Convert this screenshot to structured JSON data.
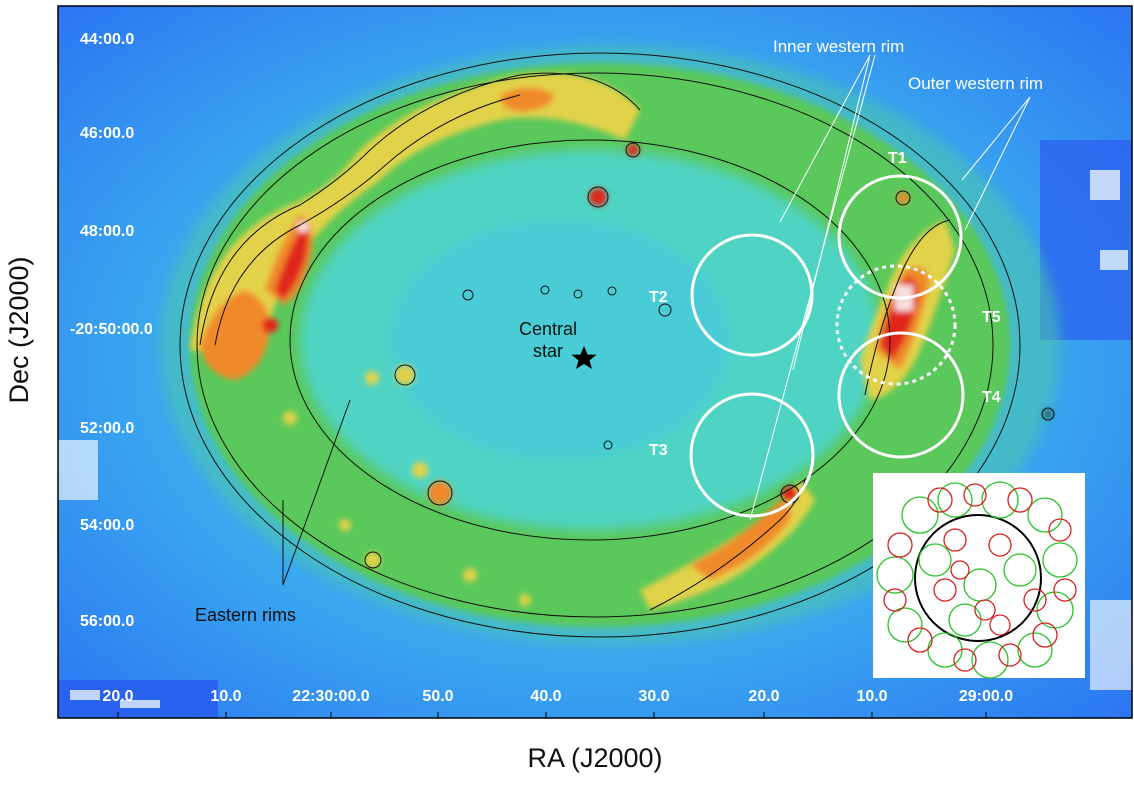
{
  "axes": {
    "x_title": "RA (J2000)",
    "y_title": "Dec (J2000)",
    "x_ticks": [
      "20.0",
      "10.0",
      "22:30:00.0",
      "50.0",
      "40.0",
      "30.0",
      "20.0",
      "10.0",
      "29:00.0"
    ],
    "y_ticks": [
      "44:00.0",
      "46:00.0",
      "48:00.0",
      "-20:50:00.0",
      "52:00.0",
      "54:00.0",
      "56:00.0"
    ]
  },
  "annotations": {
    "central_star": [
      "Central",
      "star"
    ],
    "eastern_rims": "Eastern rims",
    "inner_western_rim": "Inner western rim",
    "outer_western_rim": "Outer western rim"
  },
  "regions": [
    "T1",
    "T2",
    "T3",
    "T4",
    "T5"
  ],
  "colors": {
    "background_low": "#2b78ff",
    "background_mid": "#33c3d6",
    "ring_green": "#59c95a",
    "ring_yellow": "#e7d44a",
    "ring_orange": "#f08a2c",
    "ring_red": "#e0271f",
    "peak_white": "#f5e0e0",
    "region_circle": "#ffffff",
    "contour": "#111111",
    "inset_red": "#d81f1f",
    "inset_green": "#28c228"
  }
}
